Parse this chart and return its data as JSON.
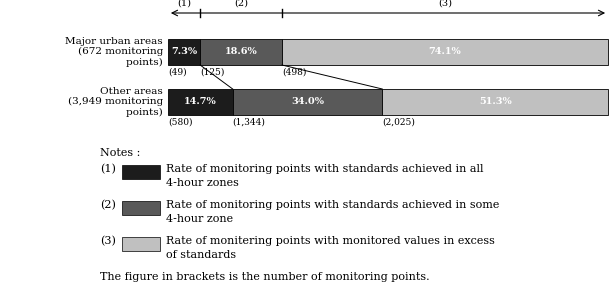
{
  "rows": [
    {
      "label": "Major urban areas\n(672 monitoring\n        points)",
      "values": [
        7.3,
        18.6,
        74.1
      ],
      "counts": [
        "(49)",
        "(125)",
        "(498)"
      ]
    },
    {
      "label": "Other areas\n(3,949 monitoring\n        points)",
      "values": [
        14.7,
        34.0,
        51.3
      ],
      "counts": [
        "(580)",
        "(1,344)",
        "(2,025)"
      ]
    }
  ],
  "colors": [
    "#1c1c1c",
    "#595959",
    "#c0c0c0"
  ],
  "footer": "The figure in brackets is the number of monitoring points.",
  "note_items": [
    {
      "num": "(1)",
      "text1": "Rate of monitoring points with standards achieved in all",
      "text2": "4-hour zones"
    },
    {
      "num": "(2)",
      "text1": "Rate of monitoring points with standards achieved in some",
      "text2": "4-hour zone"
    },
    {
      "num": "(3)",
      "text1": "Rate of monitering points with monitored values in excess",
      "text2": "of standards"
    }
  ]
}
